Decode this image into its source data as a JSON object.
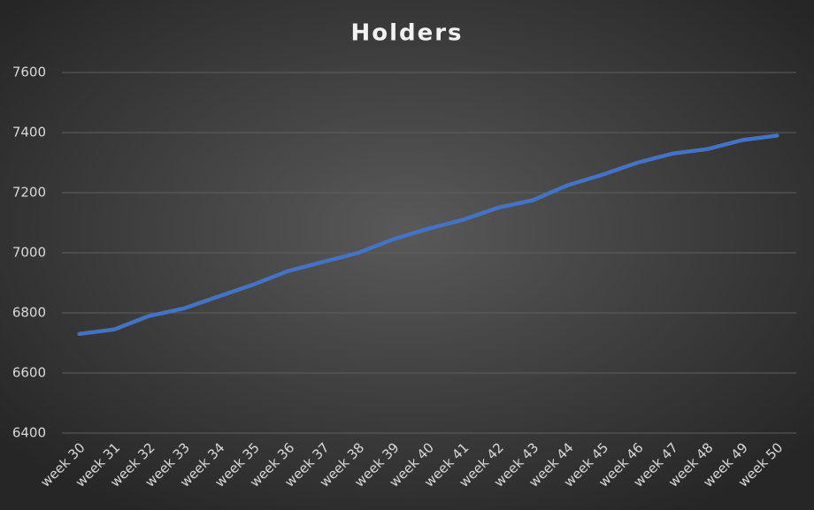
{
  "chart_data": {
    "type": "line",
    "title": "Holders",
    "categories": [
      "week 30",
      "week 31",
      "week 32",
      "week 33",
      "week 34",
      "week 35",
      "week 36",
      "week 37",
      "week 38",
      "week 39",
      "week 40",
      "week 41",
      "week 42",
      "week 43",
      "week 44",
      "week 45",
      "week 46",
      "week 47",
      "week 48",
      "week 49",
      "week 50"
    ],
    "values": [
      6730,
      6745,
      6790,
      6815,
      6855,
      6895,
      6940,
      6970,
      7000,
      7045,
      7080,
      7110,
      7150,
      7175,
      7225,
      7260,
      7300,
      7330,
      7345,
      7375,
      7390
    ],
    "color": "#4472c4",
    "ylim": [
      6400,
      7600
    ],
    "yticks": [
      6400,
      6600,
      6800,
      7000,
      7200,
      7400,
      7600
    ],
    "grid": true
  }
}
